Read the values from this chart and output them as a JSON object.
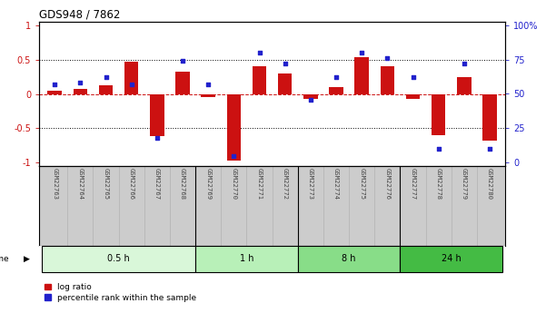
{
  "title": "GDS948 / 7862",
  "samples": [
    "GSM22763",
    "GSM22764",
    "GSM22765",
    "GSM22766",
    "GSM22767",
    "GSM22768",
    "GSM22769",
    "GSM22770",
    "GSM22771",
    "GSM22772",
    "GSM22773",
    "GSM22774",
    "GSM22775",
    "GSM22776",
    "GSM22777",
    "GSM22778",
    "GSM22779",
    "GSM22780"
  ],
  "log_ratio": [
    0.05,
    0.07,
    0.12,
    0.47,
    -0.62,
    0.32,
    -0.05,
    -0.97,
    0.4,
    0.3,
    -0.07,
    0.1,
    0.54,
    0.4,
    -0.07,
    -0.6,
    0.25,
    -0.68
  ],
  "pct_rank": [
    57,
    58,
    62,
    57,
    18,
    74,
    57,
    5,
    80,
    72,
    46,
    62,
    80,
    76,
    62,
    10,
    72,
    10
  ],
  "groups": [
    {
      "label": "0.5 h",
      "start": 0,
      "end": 6,
      "color": "#d9f7d9"
    },
    {
      "label": "1 h",
      "start": 6,
      "end": 10,
      "color": "#b8f0b8"
    },
    {
      "label": "8 h",
      "start": 10,
      "end": 14,
      "color": "#88dd88"
    },
    {
      "label": "24 h",
      "start": 14,
      "end": 18,
      "color": "#44bb44"
    }
  ],
  "bar_color": "#cc1111",
  "dot_color": "#2222cc",
  "zero_line_color": "#cc1111",
  "left_yticks": [
    -1,
    -0.5,
    0,
    0.5,
    1
  ],
  "right_yticks": [
    0,
    25,
    50,
    75,
    100
  ],
  "ylim": [
    -1.05,
    1.05
  ],
  "bar_width": 0.55,
  "sample_label_color": "#444444",
  "background_color": "#ffffff",
  "label_bg_color": "#cccccc",
  "n_samples": 18
}
